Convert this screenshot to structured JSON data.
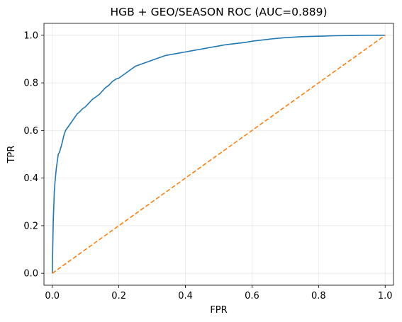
{
  "chart_data": {
    "type": "line",
    "title": "HGB + GEO/SEASON ROC (AUC=0.889)",
    "xlabel": "FPR",
    "ylabel": "TPR",
    "xlim": [
      -0.025,
      1.025
    ],
    "ylim": [
      -0.05,
      1.05
    ],
    "xticks": [
      0.0,
      0.2,
      0.4,
      0.6,
      0.8,
      1.0
    ],
    "yticks": [
      0.0,
      0.2,
      0.4,
      0.6,
      0.8,
      1.0
    ],
    "xtick_labels": [
      "0.0",
      "0.2",
      "0.4",
      "0.6",
      "0.8",
      "1.0"
    ],
    "ytick_labels": [
      "0.0",
      "0.2",
      "0.4",
      "0.6",
      "0.8",
      "1.0"
    ],
    "grid": true,
    "legend": "none",
    "series": [
      {
        "style": "solid",
        "color": "#1f77b4",
        "x": [
          0.0,
          0.001,
          0.002,
          0.003,
          0.004,
          0.005,
          0.006,
          0.008,
          0.01,
          0.012,
          0.015,
          0.018,
          0.022,
          0.026,
          0.03,
          0.035,
          0.04,
          0.045,
          0.05,
          0.055,
          0.06,
          0.065,
          0.07,
          0.075,
          0.08,
          0.09,
          0.1,
          0.11,
          0.12,
          0.13,
          0.14,
          0.15,
          0.16,
          0.17,
          0.18,
          0.19,
          0.2,
          0.21,
          0.22,
          0.23,
          0.24,
          0.25,
          0.26,
          0.27,
          0.28,
          0.3,
          0.32,
          0.34,
          0.36,
          0.38,
          0.4,
          0.42,
          0.44,
          0.46,
          0.48,
          0.5,
          0.52,
          0.55,
          0.58,
          0.6,
          0.63,
          0.66,
          0.7,
          0.75,
          0.8,
          0.85,
          0.9,
          0.95,
          1.0
        ],
        "y": [
          0.0,
          0.08,
          0.15,
          0.22,
          0.26,
          0.3,
          0.34,
          0.38,
          0.41,
          0.44,
          0.47,
          0.5,
          0.51,
          0.53,
          0.55,
          0.58,
          0.6,
          0.61,
          0.62,
          0.63,
          0.64,
          0.65,
          0.66,
          0.67,
          0.675,
          0.69,
          0.7,
          0.715,
          0.73,
          0.74,
          0.75,
          0.765,
          0.78,
          0.79,
          0.805,
          0.815,
          0.82,
          0.83,
          0.84,
          0.85,
          0.86,
          0.87,
          0.875,
          0.88,
          0.885,
          0.895,
          0.905,
          0.915,
          0.92,
          0.925,
          0.93,
          0.935,
          0.94,
          0.945,
          0.95,
          0.955,
          0.96,
          0.965,
          0.97,
          0.975,
          0.98,
          0.985,
          0.99,
          0.994,
          0.996,
          0.998,
          0.999,
          1.0,
          1.0
        ]
      },
      {
        "style": "dashed",
        "color": "#ff7f0e",
        "x": [
          0.0,
          1.0
        ],
        "y": [
          0.0,
          1.0
        ]
      }
    ]
  }
}
